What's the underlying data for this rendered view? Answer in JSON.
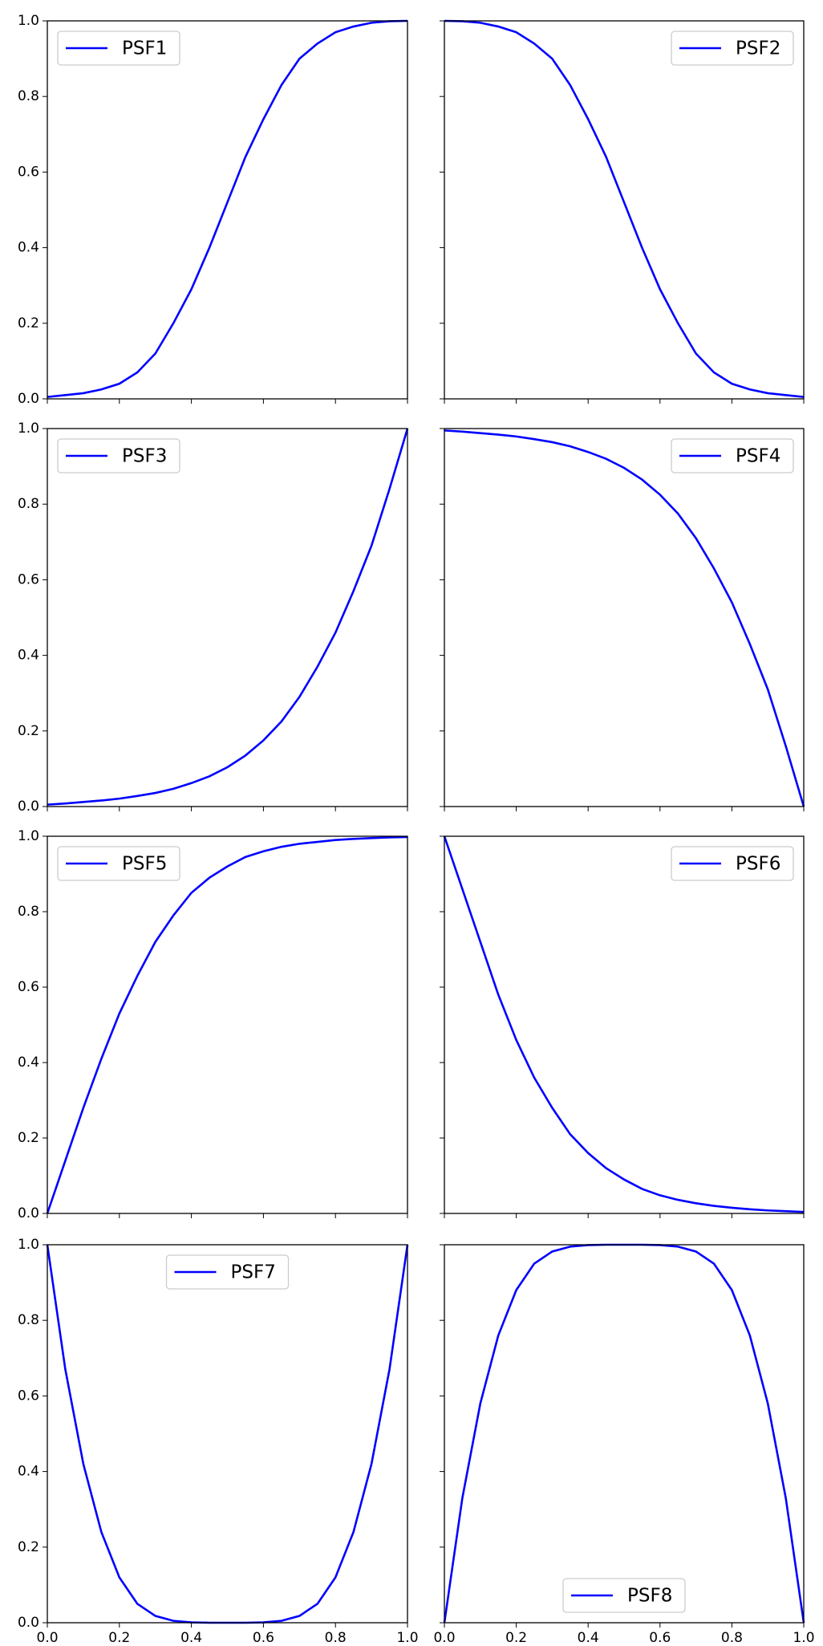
{
  "chart_data": [
    {
      "type": "line",
      "legend": "upper left",
      "x": [
        0,
        0.05,
        0.1,
        0.15,
        0.2,
        0.25,
        0.3,
        0.35,
        0.4,
        0.45,
        0.5,
        0.55,
        0.6,
        0.65,
        0.7,
        0.75,
        0.8,
        0.85,
        0.9,
        0.95,
        1
      ],
      "series": [
        {
          "name": "PSF1",
          "color": "#0000ff",
          "values": [
            0.005,
            0.01,
            0.015,
            0.025,
            0.04,
            0.07,
            0.12,
            0.2,
            0.29,
            0.4,
            0.52,
            0.64,
            0.74,
            0.83,
            0.9,
            0.94,
            0.97,
            0.985,
            0.995,
            0.999,
            1.0
          ]
        }
      ],
      "xlim": [
        0,
        1
      ],
      "ylim": [
        0,
        1
      ],
      "xticks": [
        0,
        0.2,
        0.4,
        0.6,
        0.8,
        1
      ],
      "yticks": [
        {
          "value": 0,
          "label": "0.0"
        },
        {
          "value": 0.2,
          "label": "0.2"
        },
        {
          "value": 0.4,
          "label": "0.4"
        },
        {
          "value": 0.6,
          "label": "0.6"
        },
        {
          "value": 0.8,
          "label": "0.8"
        },
        {
          "value": 1,
          "label": "1.0"
        }
      ]
    },
    {
      "type": "line",
      "legend": "upper right",
      "x": [
        0,
        0.05,
        0.1,
        0.15,
        0.2,
        0.25,
        0.3,
        0.35,
        0.4,
        0.45,
        0.5,
        0.55,
        0.6,
        0.65,
        0.7,
        0.75,
        0.8,
        0.85,
        0.9,
        0.95,
        1
      ],
      "series": [
        {
          "name": "PSF2",
          "color": "#0000ff",
          "values": [
            1.0,
            0.999,
            0.995,
            0.985,
            0.97,
            0.94,
            0.9,
            0.83,
            0.74,
            0.64,
            0.52,
            0.4,
            0.29,
            0.2,
            0.12,
            0.07,
            0.04,
            0.025,
            0.015,
            0.01,
            0.005
          ]
        }
      ],
      "xlim": [
        0,
        1
      ],
      "ylim": [
        0,
        1
      ],
      "xticks": [
        0,
        0.2,
        0.4,
        0.6,
        0.8,
        1
      ],
      "yticks": [
        0,
        0.2,
        0.4,
        0.6,
        0.8,
        1
      ]
    },
    {
      "type": "line",
      "legend": "upper left",
      "x": [
        0,
        0.05,
        0.1,
        0.15,
        0.2,
        0.25,
        0.3,
        0.35,
        0.4,
        0.45,
        0.5,
        0.55,
        0.6,
        0.65,
        0.7,
        0.75,
        0.8,
        0.85,
        0.9,
        0.95,
        1
      ],
      "series": [
        {
          "name": "PSF3",
          "color": "#0000ff",
          "values": [
            0.005,
            0.008,
            0.012,
            0.016,
            0.021,
            0.028,
            0.036,
            0.047,
            0.062,
            0.08,
            0.104,
            0.135,
            0.175,
            0.225,
            0.29,
            0.37,
            0.46,
            0.57,
            0.69,
            0.84,
            1.0
          ]
        }
      ],
      "xlim": [
        0,
        1
      ],
      "ylim": [
        0,
        1
      ],
      "xticks": [
        0,
        0.2,
        0.4,
        0.6,
        0.8,
        1
      ],
      "yticks": [
        {
          "value": 0,
          "label": "0.0"
        },
        {
          "value": 0.2,
          "label": "0.2"
        },
        {
          "value": 0.4,
          "label": "0.4"
        },
        {
          "value": 0.6,
          "label": "0.6"
        },
        {
          "value": 0.8,
          "label": "0.8"
        },
        {
          "value": 1,
          "label": "1.0"
        }
      ]
    },
    {
      "type": "line",
      "legend": "upper right",
      "x": [
        0,
        0.05,
        0.1,
        0.15,
        0.2,
        0.25,
        0.3,
        0.35,
        0.4,
        0.45,
        0.5,
        0.55,
        0.6,
        0.65,
        0.7,
        0.75,
        0.8,
        0.85,
        0.9,
        0.95,
        1
      ],
      "series": [
        {
          "name": "PSF4",
          "color": "#0000ff",
          "values": [
            0.995,
            0.992,
            0.988,
            0.984,
            0.979,
            0.972,
            0.964,
            0.953,
            0.938,
            0.92,
            0.896,
            0.865,
            0.825,
            0.775,
            0.71,
            0.63,
            0.54,
            0.43,
            0.31,
            0.16,
            0.0
          ]
        }
      ],
      "xlim": [
        0,
        1
      ],
      "ylim": [
        0,
        1
      ],
      "xticks": [
        0,
        0.2,
        0.4,
        0.6,
        0.8,
        1
      ],
      "yticks": [
        0,
        0.2,
        0.4,
        0.6,
        0.8,
        1
      ]
    },
    {
      "type": "line",
      "legend": "upper left",
      "x": [
        0,
        0.05,
        0.1,
        0.15,
        0.2,
        0.25,
        0.3,
        0.35,
        0.4,
        0.45,
        0.5,
        0.55,
        0.6,
        0.65,
        0.7,
        0.75,
        0.8,
        0.85,
        0.9,
        0.95,
        1
      ],
      "series": [
        {
          "name": "PSF5",
          "color": "#0000ff",
          "values": [
            0.0,
            0.14,
            0.28,
            0.41,
            0.53,
            0.63,
            0.72,
            0.79,
            0.85,
            0.89,
            0.92,
            0.945,
            0.96,
            0.972,
            0.98,
            0.985,
            0.99,
            0.993,
            0.995,
            0.997,
            0.998
          ]
        }
      ],
      "xlim": [
        0,
        1
      ],
      "ylim": [
        0,
        1
      ],
      "xticks": [
        0,
        0.2,
        0.4,
        0.6,
        0.8,
        1
      ],
      "yticks": [
        {
          "value": 0,
          "label": "0.0"
        },
        {
          "value": 0.2,
          "label": "0.2"
        },
        {
          "value": 0.4,
          "label": "0.4"
        },
        {
          "value": 0.6,
          "label": "0.6"
        },
        {
          "value": 0.8,
          "label": "0.8"
        },
        {
          "value": 1,
          "label": "1.0"
        }
      ]
    },
    {
      "type": "line",
      "legend": "upper right",
      "x": [
        0,
        0.05,
        0.1,
        0.15,
        0.2,
        0.25,
        0.3,
        0.35,
        0.4,
        0.45,
        0.5,
        0.55,
        0.6,
        0.65,
        0.7,
        0.75,
        0.8,
        0.85,
        0.9,
        0.95,
        1
      ],
      "series": [
        {
          "name": "PSF6",
          "color": "#0000ff",
          "values": [
            1.0,
            0.86,
            0.72,
            0.58,
            0.46,
            0.36,
            0.28,
            0.21,
            0.16,
            0.12,
            0.09,
            0.065,
            0.048,
            0.036,
            0.027,
            0.02,
            0.015,
            0.011,
            0.008,
            0.006,
            0.004
          ]
        }
      ],
      "xlim": [
        0,
        1
      ],
      "ylim": [
        0,
        1
      ],
      "xticks": [
        0,
        0.2,
        0.4,
        0.6,
        0.8,
        1
      ],
      "yticks": [
        0,
        0.2,
        0.4,
        0.6,
        0.8,
        1
      ]
    },
    {
      "type": "line",
      "legend": "upper center",
      "x": [
        0,
        0.05,
        0.1,
        0.15,
        0.2,
        0.25,
        0.3,
        0.35,
        0.4,
        0.45,
        0.5,
        0.55,
        0.6,
        0.65,
        0.7,
        0.75,
        0.8,
        0.85,
        0.9,
        0.95,
        1
      ],
      "series": [
        {
          "name": "PSF7",
          "color": "#0000ff",
          "values": [
            1.0,
            0.67,
            0.42,
            0.24,
            0.12,
            0.05,
            0.018,
            0.005,
            0.001,
            0.0,
            0.0,
            0.0,
            0.001,
            0.005,
            0.018,
            0.05,
            0.12,
            0.24,
            0.42,
            0.67,
            1.0
          ]
        }
      ],
      "xlim": [
        0,
        1
      ],
      "ylim": [
        0,
        1
      ],
      "xticks": [
        {
          "value": 0,
          "label": "0.0"
        },
        {
          "value": 0.2,
          "label": "0.2"
        },
        {
          "value": 0.4,
          "label": "0.4"
        },
        {
          "value": 0.6,
          "label": "0.6"
        },
        {
          "value": 0.8,
          "label": "0.8"
        },
        {
          "value": 1,
          "label": "1.0"
        }
      ],
      "yticks": [
        {
          "value": 0,
          "label": "0.0"
        },
        {
          "value": 0.2,
          "label": "0.2"
        },
        {
          "value": 0.4,
          "label": "0.4"
        },
        {
          "value": 0.6,
          "label": "0.6"
        },
        {
          "value": 0.8,
          "label": "0.8"
        },
        {
          "value": 1,
          "label": "1.0"
        }
      ]
    },
    {
      "type": "line",
      "legend": "lower center",
      "x": [
        0,
        0.05,
        0.1,
        0.15,
        0.2,
        0.25,
        0.3,
        0.35,
        0.4,
        0.45,
        0.5,
        0.55,
        0.6,
        0.65,
        0.7,
        0.75,
        0.8,
        0.85,
        0.9,
        0.95,
        1
      ],
      "series": [
        {
          "name": "PSF8",
          "color": "#0000ff",
          "values": [
            0.0,
            0.33,
            0.58,
            0.76,
            0.88,
            0.95,
            0.982,
            0.995,
            0.999,
            1.0,
            1.0,
            1.0,
            0.999,
            0.995,
            0.982,
            0.95,
            0.88,
            0.76,
            0.58,
            0.33,
            0.0
          ]
        }
      ],
      "xlim": [
        0,
        1
      ],
      "ylim": [
        0,
        1
      ],
      "xticks": [
        {
          "value": 0,
          "label": "0.0"
        },
        {
          "value": 0.2,
          "label": "0.2"
        },
        {
          "value": 0.4,
          "label": "0.4"
        },
        {
          "value": 0.6,
          "label": "0.6"
        },
        {
          "value": 0.8,
          "label": "0.8"
        },
        {
          "value": 1,
          "label": "1.0"
        }
      ],
      "yticks": [
        0,
        0.2,
        0.4,
        0.6,
        0.8,
        1
      ]
    }
  ]
}
